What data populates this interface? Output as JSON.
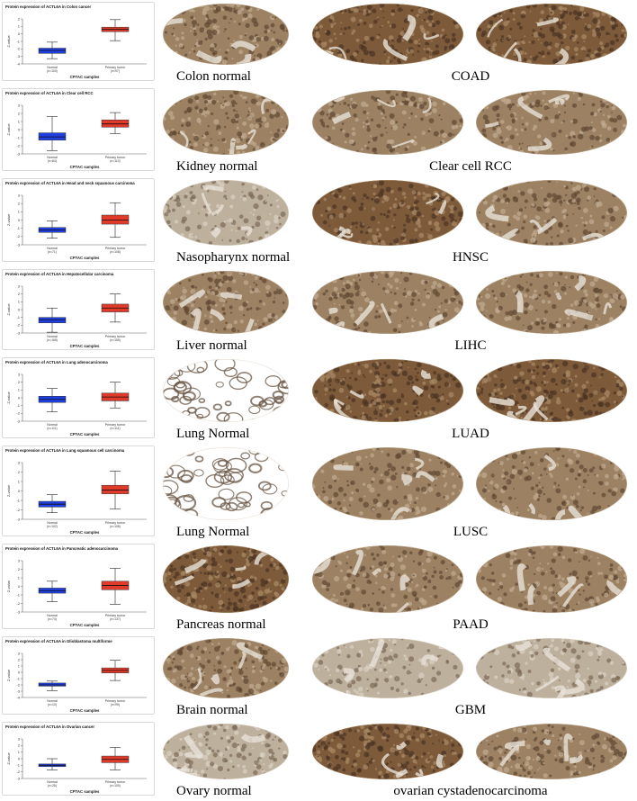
{
  "colors": {
    "normal_box": "#1f3fe0",
    "tumor_box": "#e03a2a",
    "stain_brown": "#8a6a48",
    "stain_dark": "#5a4330",
    "stain_light": "#cfc3b0",
    "background_tissue": "#bfb4a3"
  },
  "shared": {
    "ylabel": "Z-value",
    "xlabel": "CPTAC samples",
    "normal_label": "Normal",
    "tumor_label": "Primary tumor"
  },
  "rows": [
    {
      "title": "Protein expression of ACTL6A in Colon cancer",
      "normal_n": "(n=100)",
      "tumor_n": "(n=97)",
      "yticks": [
        "2",
        "1",
        "0",
        "-1",
        "-2",
        "-3",
        "-4"
      ],
      "tissue_label": "Colon normal",
      "tumor_label": "COAD",
      "stain": {
        "normal": "medium",
        "tumor_left": "strong",
        "tumor_right": "strong"
      }
    },
    {
      "title": "Protein expression of ACTL6A in Clear cell RCC",
      "normal_n": "(n=84)",
      "tumor_n": "(n=110)",
      "yticks": [
        "3",
        "2",
        "1",
        "0",
        "-1",
        "-2",
        "-3"
      ],
      "tissue_label": "Kidney normal",
      "tumor_label": "Clear cell RCC",
      "stain": {
        "normal": "medium",
        "tumor_left": "medium",
        "tumor_right": "medium"
      }
    },
    {
      "title": "Protein expression of ACTL6A in Head and neck squamous carcinoma",
      "normal_n": "(n=71)",
      "tumor_n": "(n=108)",
      "yticks": [
        "3",
        "2",
        "1",
        "0",
        "-1",
        "-2",
        "-3"
      ],
      "tissue_label": "Nasopharynx normal",
      "tumor_label": "HNSC",
      "stain": {
        "normal": "light",
        "tumor_left": "strong",
        "tumor_right": "medium"
      }
    },
    {
      "title": "Protein expression of ACTL6A in Hepatocellular carcinoma",
      "normal_n": "(n=165)",
      "tumor_n": "(n=165)",
      "yticks": [
        "3",
        "2",
        "1",
        "0",
        "-1",
        "-2",
        "-3"
      ],
      "tissue_label": "Liver normal",
      "tumor_label": "LIHC",
      "stain": {
        "normal": "medium",
        "tumor_left": "medium",
        "tumor_right": "medium"
      }
    },
    {
      "title": "Protein expression of ACTL6A in Lung adenocarcinoma",
      "normal_n": "(n=111)",
      "tumor_n": "(n=111)",
      "yticks": [
        "3",
        "2",
        "1",
        "0",
        "-1",
        "-2",
        "-3"
      ],
      "tissue_label": "Lung Normal",
      "tumor_label": "LUAD",
      "stain": {
        "normal": "sparse",
        "tumor_left": "strong",
        "tumor_right": "strong"
      }
    },
    {
      "title": "Protein expression of ACTL6A in Lung squamous cell carcinoma",
      "normal_n": "(n=102)",
      "tumor_n": "(n=108)",
      "yticks": [
        "3",
        "2",
        "1",
        "0",
        "-1",
        "-2",
        "-3"
      ],
      "tissue_label": "Lung Normal",
      "tumor_label": "LUSC",
      "stain": {
        "normal": "sparse",
        "tumor_left": "medium",
        "tumor_right": "medium"
      }
    },
    {
      "title": "Protein expression of ACTL6A in Pancreatic adenocarcinoma",
      "normal_n": "(n=74)",
      "tumor_n": "(n=137)",
      "yticks": [
        "3",
        "2",
        "1",
        "0",
        "-1",
        "-2",
        "-3"
      ],
      "tissue_label": "Pancreas normal",
      "tumor_label": "PAAD",
      "stain": {
        "normal": "strong",
        "tumor_left": "medium",
        "tumor_right": "medium"
      }
    },
    {
      "title": "Protein expression of ACTL6A in Glioblastoma multiforme",
      "normal_n": "(n=10)",
      "tumor_n": "(n=99)",
      "yticks": [
        "3",
        "2",
        "1",
        "0",
        "-1",
        "-2",
        "-3",
        "-4"
      ],
      "tissue_label": "Brain normal",
      "tumor_label": "GBM",
      "stain": {
        "normal": "medium",
        "tumor_left": "light",
        "tumor_right": "light"
      }
    },
    {
      "title": "Protein expression of ACTL6A in Ovarian cancer",
      "normal_n": "(n=25)",
      "tumor_n": "(n=100)",
      "yticks": [
        "3",
        "2",
        "1",
        "0",
        "-1",
        "-2",
        "-3"
      ],
      "tissue_label": "Ovary normal",
      "tumor_label": "ovarian cystadenocarcinoma",
      "stain": {
        "normal": "light",
        "tumor_left": "strong",
        "tumor_right": "medium"
      }
    }
  ],
  "chart_data": [
    {
      "type": "box",
      "title": "Protein expression of ACTL6A in Colon cancer",
      "xlabel": "CPTAC samples",
      "ylabel": "Z-value",
      "ylim": [
        -4,
        2
      ],
      "categories": [
        "Normal",
        "Primary tumor"
      ],
      "series": [
        {
          "name": "Normal",
          "min": -3.3,
          "q1": -2.6,
          "median": -2.2,
          "q3": -1.9,
          "max": -1.1
        },
        {
          "name": "Primary tumor",
          "min": -0.9,
          "q1": 0.3,
          "median": 0.6,
          "q3": 0.9,
          "max": 1.9
        }
      ]
    },
    {
      "type": "box",
      "title": "Protein expression of ACTL6A in Clear cell RCC",
      "xlabel": "CPTAC samples",
      "ylabel": "Z-value",
      "ylim": [
        -3,
        3
      ],
      "categories": [
        "Normal",
        "Primary tumor"
      ],
      "series": [
        {
          "name": "Normal",
          "min": -2.6,
          "q1": -1.3,
          "median": -0.9,
          "q3": -0.4,
          "max": 1.6
        },
        {
          "name": "Primary tumor",
          "min": -0.5,
          "q1": 0.3,
          "median": 0.7,
          "q3": 1.2,
          "max": 2.1
        }
      ]
    },
    {
      "type": "box",
      "title": "Protein expression of ACTL6A in Head and neck squamous carcinoma",
      "xlabel": "CPTAC samples",
      "ylabel": "Z-value",
      "ylim": [
        -3,
        3
      ],
      "categories": [
        "Normal",
        "Primary tumor"
      ],
      "series": [
        {
          "name": "Normal",
          "min": -2.2,
          "q1": -1.5,
          "median": -1.2,
          "q3": -0.9,
          "max": -0.1
        },
        {
          "name": "Primary tumor",
          "min": -2.1,
          "q1": -0.5,
          "median": 0.0,
          "q3": 0.6,
          "max": 2.1
        }
      ]
    },
    {
      "type": "box",
      "title": "Protein expression of ACTL6A in Hepatocellular carcinoma",
      "xlabel": "CPTAC samples",
      "ylabel": "Z-value",
      "ylim": [
        -3,
        3
      ],
      "categories": [
        "Normal",
        "Primary tumor"
      ],
      "series": [
        {
          "name": "Normal",
          "min": -2.9,
          "q1": -1.7,
          "median": -1.3,
          "q3": -1.0,
          "max": 0.2
        },
        {
          "name": "Primary tumor",
          "min": -1.6,
          "q1": -0.3,
          "median": 0.2,
          "q3": 0.7,
          "max": 2.0
        }
      ]
    },
    {
      "type": "box",
      "title": "Protein expression of ACTL6A in Lung adenocarcinoma",
      "xlabel": "CPTAC samples",
      "ylabel": "Z-value",
      "ylim": [
        -3,
        3
      ],
      "categories": [
        "Normal",
        "Primary tumor"
      ],
      "series": [
        {
          "name": "Normal",
          "min": -1.8,
          "q1": -0.6,
          "median": -0.2,
          "q3": 0.2,
          "max": 1.2
        },
        {
          "name": "Primary tumor",
          "min": -1.3,
          "q1": -0.4,
          "median": 0.1,
          "q3": 0.6,
          "max": 2.0
        }
      ]
    },
    {
      "type": "box",
      "title": "Protein expression of ACTL6A in Lung squamous cell carcinoma",
      "xlabel": "CPTAC samples",
      "ylabel": "Z-value",
      "ylim": [
        -3,
        3
      ],
      "categories": [
        "Normal",
        "Primary tumor"
      ],
      "series": [
        {
          "name": "Normal",
          "min": -2.3,
          "q1": -1.7,
          "median": -1.4,
          "q3": -1.1,
          "max": -0.4
        },
        {
          "name": "Primary tumor",
          "min": -1.9,
          "q1": -0.3,
          "median": 0.1,
          "q3": 0.6,
          "max": 2.1
        }
      ]
    },
    {
      "type": "box",
      "title": "Protein expression of ACTL6A in Pancreatic adenocarcinoma",
      "xlabel": "CPTAC samples",
      "ylabel": "Z-value",
      "ylim": [
        -3,
        3
      ],
      "categories": [
        "Normal",
        "Primary tumor"
      ],
      "series": [
        {
          "name": "Normal",
          "min": -1.8,
          "q1": -0.8,
          "median": -0.5,
          "q3": -0.2,
          "max": 0.6
        },
        {
          "name": "Primary tumor",
          "min": -2.1,
          "q1": -0.4,
          "median": 0.1,
          "q3": 0.6,
          "max": 2.1
        }
      ]
    },
    {
      "type": "box",
      "title": "Protein expression of ACTL6A in Glioblastoma multiforme",
      "xlabel": "CPTAC samples",
      "ylabel": "Z-value",
      "ylim": [
        -4,
        3
      ],
      "categories": [
        "Normal",
        "Primary tumor"
      ],
      "series": [
        {
          "name": "Normal",
          "min": -2.9,
          "q1": -2.2,
          "median": -2.0,
          "q3": -1.7,
          "max": -1.4
        },
        {
          "name": "Primary tumor",
          "min": -1.3,
          "q1": -0.1,
          "median": 0.3,
          "q3": 0.7,
          "max": 1.9
        }
      ]
    },
    {
      "type": "box",
      "title": "Protein expression of ACTL6A in Ovarian cancer",
      "xlabel": "CPTAC samples",
      "ylabel": "Z-value",
      "ylim": [
        -3,
        3
      ],
      "categories": [
        "Normal",
        "Primary tumor"
      ],
      "series": [
        {
          "name": "Normal",
          "min": -1.7,
          "q1": -1.2,
          "median": -1.0,
          "q3": -0.8,
          "max": 0.0
        },
        {
          "name": "Primary tumor",
          "min": -1.7,
          "q1": -0.6,
          "median": -0.1,
          "q3": 0.4,
          "max": 1.7
        }
      ]
    }
  ]
}
